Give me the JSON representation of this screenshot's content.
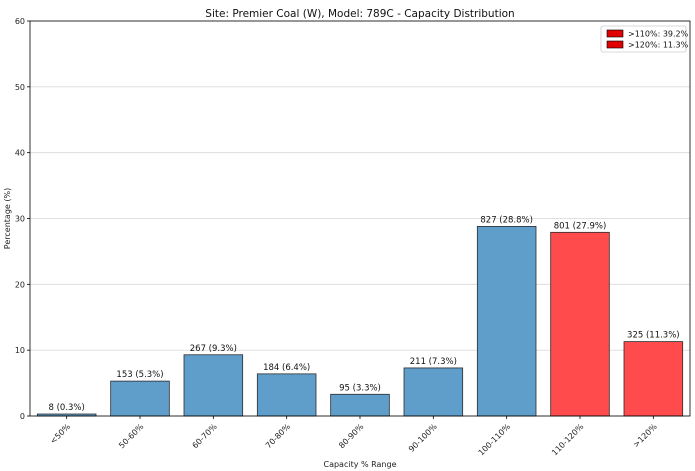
{
  "chart_data": {
    "type": "bar",
    "title": "Site: Premier Coal (W), Model: 789C - Capacity Distribution",
    "xlabel": "Capacity % Range",
    "ylabel": "Percentage (%)",
    "ylim": [
      0,
      60
    ],
    "yticks": [
      0,
      10,
      20,
      30,
      40,
      50,
      60
    ],
    "grid": "horizontal",
    "legend_position": "top-right",
    "categories": [
      "<50%",
      "50-60%",
      "60-70%",
      "70-80%",
      "80-90%",
      "90-100%",
      "100-110%",
      "110-120%",
      ">120%"
    ],
    "values": [
      0.3,
      5.3,
      9.3,
      6.4,
      3.3,
      7.3,
      28.8,
      27.9,
      11.3
    ],
    "data_labels": [
      "8 (0.3%)",
      "153 (5.3%)",
      "267 (9.3%)",
      "184 (6.4%)",
      "95 (3.3%)",
      "211 (7.3%)",
      "827 (28.8%)",
      "801 (27.9%)",
      "325 (11.3%)"
    ],
    "bar_colors": [
      "#5f9ecb",
      "#5f9ecb",
      "#5f9ecb",
      "#5f9ecb",
      "#5f9ecb",
      "#5f9ecb",
      "#5f9ecb",
      "#ff4b4b",
      "#ff4b4b"
    ],
    "legend": [
      {
        "label": ">110%: 39.2%",
        "color": "#e00000"
      },
      {
        "label": ">120%: 11.3%",
        "color": "#e00000"
      }
    ]
  }
}
